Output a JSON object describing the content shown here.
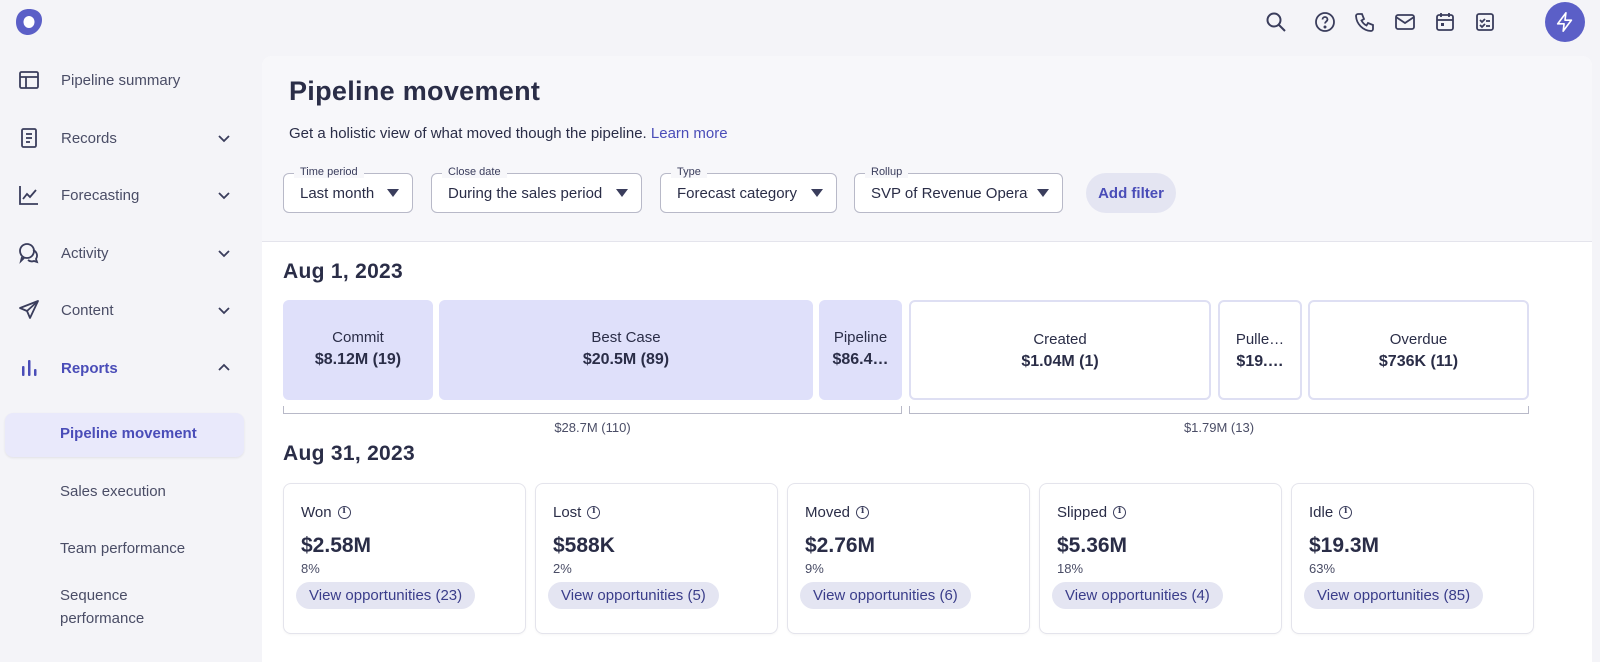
{
  "app": {
    "brand_color": "#5b5fc7",
    "logo": "outreach-logo"
  },
  "topbar": {
    "icons": [
      "search-icon",
      "help-icon",
      "phone-icon",
      "mail-icon",
      "calendar-icon",
      "tasks-icon",
      "bolt-icon"
    ]
  },
  "sidebar": {
    "items": [
      {
        "label": "Pipeline summary",
        "icon": "layout-icon"
      },
      {
        "label": "Records",
        "icon": "document-icon"
      },
      {
        "label": "Forecasting",
        "icon": "trend-icon"
      },
      {
        "label": "Activity",
        "icon": "chat-icon"
      },
      {
        "label": "Content",
        "icon": "send-icon"
      },
      {
        "label": "Reports",
        "icon": "bar-chart-icon"
      }
    ],
    "subitems": [
      "Pipeline movement",
      "Sales execution",
      "Team performance",
      "Sequence performance"
    ]
  },
  "page": {
    "title": "Pipeline movement",
    "description": "Get a holistic view of what moved though the pipeline.",
    "learn_more": "Learn more"
  },
  "filters": [
    {
      "label": "Time period",
      "value": "Last month"
    },
    {
      "label": "Close date",
      "value": "During the sales period"
    },
    {
      "label": "Type",
      "value": "Forecast category"
    },
    {
      "label": "Rollup",
      "value": "SVP of Revenue Operations"
    }
  ],
  "add_filter": "Add filter",
  "start": {
    "date": "Aug 1, 2023",
    "segments": [
      {
        "label": "Commit",
        "value": "$8.12M (19)"
      },
      {
        "label": "Best Case",
        "value": "$20.5M (89)"
      },
      {
        "label": "Pipeline",
        "value": "$86.4…"
      },
      {
        "label": "Created",
        "value": "$1.04M (1)"
      },
      {
        "label": "Pulle…",
        "value": "$19.…"
      },
      {
        "label": "Overdue",
        "value": "$736K (11)"
      }
    ],
    "totals": [
      "$28.7M (110)",
      "$1.79M (13)"
    ]
  },
  "end": {
    "date": "Aug 31, 2023",
    "cards": [
      {
        "label": "Won",
        "value": "$2.58M",
        "pct": "8%",
        "button": "View opportunities (23)"
      },
      {
        "label": "Lost",
        "value": "$588K",
        "pct": "2%",
        "button": "View opportunities (5)"
      },
      {
        "label": "Moved",
        "value": "$2.76M",
        "pct": "9%",
        "button": "View opportunities (6)"
      },
      {
        "label": "Slipped",
        "value": "$5.36M",
        "pct": "18%",
        "button": "View opportunities (4)"
      },
      {
        "label": "Idle",
        "value": "$19.3M",
        "pct": "63%",
        "button": "View opportunities (85)"
      }
    ]
  }
}
